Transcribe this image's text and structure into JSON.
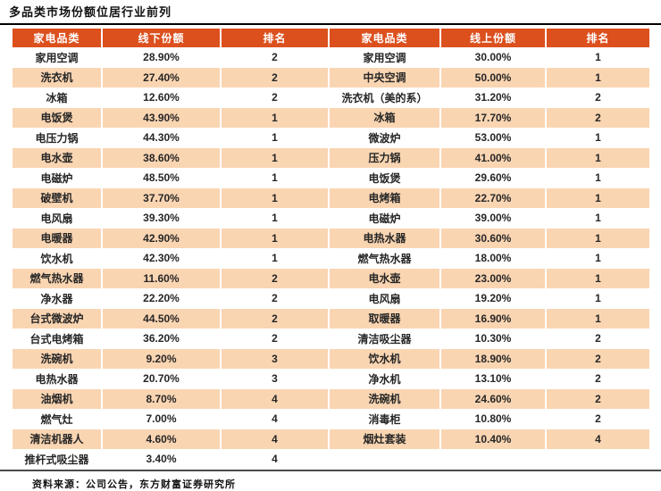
{
  "title": "多品类市场份额位居行业前列",
  "source": "资料来源：公司公告，东方财富证券研究所",
  "colors": {
    "header_bg": "#DC501E",
    "row_alt_bg": "#FAD5B2",
    "header_text": "#FFFFFF",
    "body_text": "#262626",
    "title_rule": "#000000",
    "bottom_rule": "#4A4A4A"
  },
  "table": {
    "headers": [
      "家电品类",
      "线下份额",
      "排名",
      "家电品类",
      "线上份额",
      "排名"
    ],
    "rows": [
      [
        "家用空调",
        "28.90%",
        "2",
        "家用空调",
        "30.00%",
        "1"
      ],
      [
        "洗衣机",
        "27.40%",
        "2",
        "中央空调",
        "50.00%",
        "1"
      ],
      [
        "冰箱",
        "12.60%",
        "2",
        "洗衣机（美的系）",
        "31.20%",
        "2"
      ],
      [
        "电饭煲",
        "43.90%",
        "1",
        "冰箱",
        "17.70%",
        "2"
      ],
      [
        "电压力锅",
        "44.30%",
        "1",
        "微波炉",
        "53.00%",
        "1"
      ],
      [
        "电水壶",
        "38.60%",
        "1",
        "压力锅",
        "41.00%",
        "1"
      ],
      [
        "电磁炉",
        "48.50%",
        "1",
        "电饭煲",
        "29.60%",
        "1"
      ],
      [
        "破壁机",
        "37.70%",
        "1",
        "电烤箱",
        "22.70%",
        "1"
      ],
      [
        "电风扇",
        "39.30%",
        "1",
        "电磁炉",
        "39.00%",
        "1"
      ],
      [
        "电暖器",
        "42.90%",
        "1",
        "电热水器",
        "30.60%",
        "1"
      ],
      [
        "饮水机",
        "42.30%",
        "1",
        "燃气热水器",
        "18.00%",
        "1"
      ],
      [
        "燃气热水器",
        "11.60%",
        "2",
        "电水壶",
        "23.00%",
        "1"
      ],
      [
        "净水器",
        "22.20%",
        "2",
        "电风扇",
        "19.20%",
        "1"
      ],
      [
        "台式微波炉",
        "44.50%",
        "2",
        "取暖器",
        "16.90%",
        "1"
      ],
      [
        "台式电烤箱",
        "36.20%",
        "2",
        "清洁吸尘器",
        "10.30%",
        "2"
      ],
      [
        "洗碗机",
        "9.20%",
        "3",
        "饮水机",
        "18.90%",
        "2"
      ],
      [
        "电热水器",
        "20.70%",
        "3",
        "净水机",
        "13.10%",
        "2"
      ],
      [
        "油烟机",
        "8.70%",
        "4",
        "洗碗机",
        "24.60%",
        "2"
      ],
      [
        "燃气灶",
        "7.00%",
        "4",
        "消毒柜",
        "10.80%",
        "2"
      ],
      [
        "清洁机器人",
        "4.60%",
        "4",
        "烟灶套装",
        "10.40%",
        "4"
      ],
      [
        "推杆式吸尘器",
        "3.40%",
        "4",
        "",
        "",
        ""
      ]
    ]
  }
}
